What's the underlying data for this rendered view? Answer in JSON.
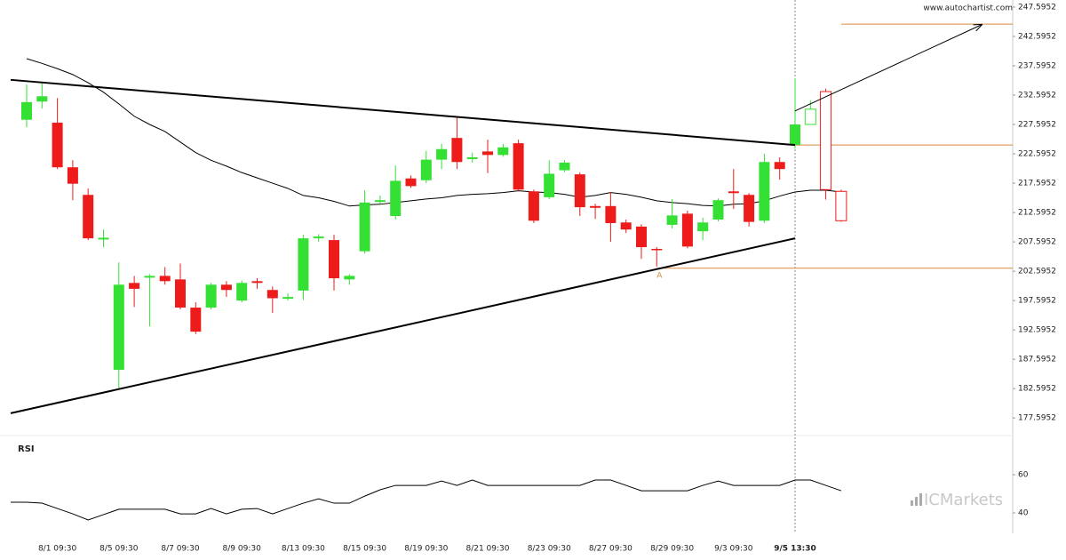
{
  "credit": "www.autochartist.com",
  "watermark": "ICMarkets",
  "chart_data": [
    {
      "type": "candlestick",
      "categories": [
        null,
        null,
        "8/1 09:30",
        null,
        null,
        null,
        "8/5 09:30",
        null,
        null,
        null,
        "8/7 09:30",
        null,
        null,
        null,
        "8/9 09:30",
        null,
        null,
        null,
        "8/13 09:30",
        null,
        null,
        null,
        "8/15 09:30",
        null,
        null,
        null,
        "8/19 09:30",
        null,
        null,
        null,
        "8/21 09:30",
        null,
        null,
        null,
        "8/23 09:30",
        null,
        null,
        null,
        "8/27 09:30",
        null,
        null,
        null,
        "8/29 09:30",
        null,
        null,
        null,
        "9/3 09:30",
        null,
        null,
        null,
        "9/5 13:30",
        null,
        null,
        null
      ],
      "open": [
        228.4,
        231.5,
        227.9,
        220.3,
        215.6,
        208.0,
        185.8,
        200.6,
        201.5,
        201.8,
        201.2,
        196.4,
        196.4,
        200.3,
        197.6,
        200.9,
        199.4,
        197.9,
        199.3,
        208.2,
        207.9,
        201.2,
        206.0,
        214.4,
        212.0,
        218.4,
        218.1,
        221.6,
        225.3,
        221.7,
        223.0,
        222.4,
        224.4,
        216.2,
        215.2,
        219.8,
        219.1,
        213.7,
        213.7,
        210.9,
        210.2,
        206.4,
        210.5,
        212.4,
        209.4,
        211.4,
        216.2,
        215.6,
        211.2,
        221.2,
        224.1,
        null,
        null,
        null
      ],
      "high": [
        234.4,
        234.6,
        232.1,
        221.5,
        216.7,
        209.7,
        204.1,
        201.8,
        202.1,
        203.3,
        203.9,
        197.3,
        200.6,
        200.9,
        201.0,
        201.4,
        200.0,
        198.8,
        208.8,
        208.9,
        208.8,
        202.1,
        216.4,
        215.5,
        220.6,
        218.9,
        223.1,
        224.3,
        228.8,
        222.8,
        225.0,
        224.3,
        225.0,
        216.5,
        221.5,
        221.5,
        219.4,
        214.1,
        216.1,
        211.4,
        210.6,
        206.7,
        214.9,
        212.9,
        211.7,
        215.0,
        220.0,
        215.9,
        222.6,
        222.0,
        235.5,
        null,
        null,
        null
      ],
      "low": [
        227.1,
        230.3,
        220.0,
        214.7,
        207.9,
        206.7,
        182.6,
        196.5,
        193.2,
        200.3,
        196.1,
        191.9,
        196.1,
        198.2,
        197.3,
        199.6,
        195.5,
        197.6,
        197.7,
        207.6,
        199.3,
        200.3,
        205.6,
        214.1,
        211.4,
        216.8,
        217.6,
        220.0,
        220.0,
        221.1,
        219.3,
        222.1,
        216.2,
        210.8,
        214.9,
        219.5,
        212.0,
        211.5,
        207.6,
        209.1,
        204.7,
        203.4,
        209.9,
        206.5,
        207.9,
        211.1,
        213.2,
        210.2,
        210.8,
        218.2,
        223.5,
        null,
        null,
        null
      ],
      "close": [
        231.4,
        232.4,
        220.3,
        217.5,
        208.2,
        208.3,
        200.3,
        199.6,
        201.8,
        200.9,
        196.4,
        192.3,
        200.3,
        199.4,
        200.6,
        200.6,
        198.0,
        198.2,
        208.2,
        208.5,
        201.4,
        201.8,
        214.3,
        214.7,
        218.0,
        217.1,
        221.6,
        223.4,
        221.2,
        222.0,
        222.4,
        223.7,
        216.5,
        211.2,
        219.2,
        221.1,
        213.5,
        213.4,
        210.8,
        209.7,
        206.7,
        206.2,
        212.1,
        206.8,
        210.9,
        214.7,
        215.9,
        211.0,
        221.2,
        220.0,
        227.6,
        null,
        null,
        null
      ],
      "projection": {
        "open": [
          null,
          null,
          null,
          null,
          null,
          null,
          null,
          null,
          null,
          null,
          null,
          null,
          null,
          null,
          null,
          null,
          null,
          null,
          null,
          null,
          null,
          null,
          null,
          null,
          null,
          null,
          null,
          null,
          null,
          null,
          null,
          null,
          null,
          null,
          null,
          null,
          null,
          null,
          null,
          null,
          null,
          null,
          null,
          null,
          null,
          null,
          null,
          null,
          null,
          null,
          null,
          227.6,
          233.2,
          216.2
        ],
        "high": [
          null,
          null,
          null,
          null,
          null,
          null,
          null,
          null,
          null,
          null,
          null,
          null,
          null,
          null,
          null,
          null,
          null,
          null,
          null,
          null,
          null,
          null,
          null,
          null,
          null,
          null,
          null,
          null,
          null,
          null,
          null,
          null,
          null,
          null,
          null,
          null,
          null,
          null,
          null,
          null,
          null,
          null,
          null,
          null,
          null,
          null,
          null,
          null,
          null,
          null,
          null,
          231.7,
          233.7,
          216.5
        ],
        "low": [
          null,
          null,
          null,
          null,
          null,
          null,
          null,
          null,
          null,
          null,
          null,
          null,
          null,
          null,
          null,
          null,
          null,
          null,
          null,
          null,
          null,
          null,
          null,
          null,
          null,
          null,
          null,
          null,
          null,
          null,
          null,
          null,
          null,
          null,
          null,
          null,
          null,
          null,
          null,
          null,
          null,
          null,
          null,
          null,
          null,
          null,
          null,
          null,
          null,
          null,
          null,
          227.6,
          214.8,
          211.0
        ],
        "close": [
          null,
          null,
          null,
          null,
          null,
          null,
          null,
          null,
          null,
          null,
          null,
          null,
          null,
          null,
          null,
          null,
          null,
          null,
          null,
          null,
          null,
          null,
          null,
          null,
          null,
          null,
          null,
          null,
          null,
          null,
          null,
          null,
          null,
          null,
          null,
          null,
          null,
          null,
          null,
          null,
          null,
          null,
          null,
          null,
          null,
          null,
          null,
          null,
          null,
          null,
          null,
          230.2,
          216.5,
          211.2
        ]
      },
      "moving_average": [
        238.8,
        238.0,
        237.1,
        236.1,
        234.7,
        233.1,
        231.1,
        229.0,
        227.6,
        226.4,
        224.6,
        222.8,
        221.5,
        220.5,
        219.4,
        218.5,
        217.6,
        216.7,
        215.5,
        215.1,
        214.5,
        213.7,
        213.9,
        214.0,
        214.3,
        214.6,
        214.9,
        215.1,
        215.5,
        215.7,
        215.8,
        216.0,
        216.3,
        216.1,
        216.0,
        215.7,
        215.2,
        215.5,
        216.0,
        215.7,
        215.2,
        214.6,
        214.3,
        214.1,
        213.8,
        213.7,
        214.0,
        214.1,
        214.6,
        215.4,
        216.1,
        216.4,
        216.4,
        216.1
      ],
      "trend_lines": [
        [
          235.2,
          224.1
        ],
        [
          178.4,
          208.2
        ]
      ],
      "levels": [
        224.1,
        203.1,
        244.7
      ],
      "arrow": [
        229.9,
        244.6
      ],
      "annotation": "A",
      "up_color": "#33e033",
      "down_color": "#ee1b1b",
      "level_color": "#d98a3c",
      "ylim": [
        174.6,
        248.8
      ],
      "yticks": [
        247.5952,
        242.5952,
        237.5952,
        232.5952,
        227.5952,
        222.5952,
        217.5952,
        212.5952,
        207.5952,
        202.5952,
        197.5952,
        192.5952,
        187.5952,
        182.5952,
        177.5952
      ]
    },
    {
      "type": "line",
      "title": "RSI",
      "values": [
        45.6,
        45.1,
        42.3,
        39.5,
        36.3,
        39.1,
        41.9,
        41.9,
        41.9,
        41.9,
        39.5,
        39.5,
        42.3,
        39.5,
        41.9,
        42.3,
        39.5,
        42.3,
        45.1,
        47.4,
        45.1,
        45.1,
        48.8,
        52.1,
        54.4,
        54.4,
        54.4,
        56.7,
        54.4,
        57.2,
        54.4,
        54.4,
        54.4,
        54.4,
        54.4,
        54.4,
        54.4,
        57.2,
        57.2,
        54.4,
        51.6,
        51.6,
        51.6,
        51.6,
        54.4,
        56.7,
        54.4,
        54.4,
        54.4,
        54.4,
        57.2,
        57.2,
        54.4,
        51.6
      ],
      "color": "#000000",
      "ylim": [
        29.3,
        80.5
      ],
      "yticks": [
        40,
        60
      ]
    }
  ]
}
